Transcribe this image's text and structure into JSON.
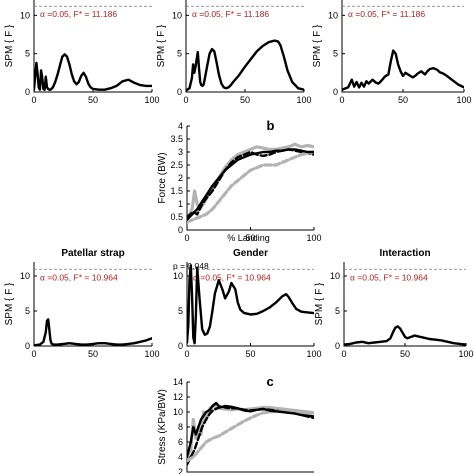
{
  "chart_data": [
    {
      "id": "spm_top_1",
      "type": "line",
      "title": "",
      "ylabel": "SPM { F }",
      "xlim": [
        0,
        100
      ],
      "ylim": [
        0,
        12
      ],
      "xticks": [
        "0",
        "50",
        "100"
      ],
      "yticks": [
        "0",
        "5",
        "10"
      ],
      "threshold": {
        "value": 11.186,
        "label": "α =0.05,     F* = 11.186"
      },
      "series": [
        {
          "x": [
            0,
            2,
            3,
            4,
            5,
            6,
            7,
            8,
            9,
            10,
            11,
            12,
            13,
            14,
            16,
            18,
            20,
            22,
            24,
            26,
            28,
            30,
            32,
            34,
            36,
            38,
            40,
            42,
            44,
            46,
            48,
            50,
            55,
            60,
            65,
            70,
            75,
            80,
            85,
            90,
            95,
            100
          ],
          "y": [
            0.3,
            3.8,
            2.5,
            0.6,
            0.3,
            2.8,
            1.8,
            0.4,
            0.3,
            2.0,
            0.6,
            0.4,
            0.3,
            0.3,
            0.6,
            1.3,
            2.3,
            3.5,
            4.6,
            4.9,
            4.6,
            3.6,
            2.3,
            1.4,
            1.0,
            1.3,
            2.1,
            2.5,
            2.0,
            1.1,
            0.6,
            0.4,
            0.3,
            0.3,
            0.5,
            0.8,
            1.4,
            1.6,
            1.2,
            0.9,
            0.8,
            0.8
          ]
        }
      ]
    },
    {
      "id": "spm_top_2",
      "type": "line",
      "title": "",
      "ylabel": "SPM { F }",
      "xlim": [
        0,
        100
      ],
      "ylim": [
        0,
        12
      ],
      "xticks": [
        "0",
        "50",
        "100"
      ],
      "yticks": [
        "0",
        "5",
        "10"
      ],
      "threshold": {
        "value": 11.186,
        "label": "α =0.05,     F* = 11.186"
      },
      "series": [
        {
          "x": [
            0,
            3,
            5,
            6,
            7,
            8,
            9,
            10,
            11,
            12,
            13,
            14,
            15,
            16,
            18,
            20,
            22,
            24,
            26,
            28,
            30,
            32,
            34,
            36,
            38,
            40,
            45,
            50,
            55,
            60,
            65,
            70,
            75,
            78,
            80,
            83,
            86,
            90,
            95,
            100
          ],
          "y": [
            0.2,
            0.5,
            1.8,
            3.6,
            2.5,
            3.2,
            4.2,
            5.2,
            3.1,
            1.3,
            0.9,
            0.8,
            1.0,
            1.8,
            3.4,
            5.0,
            5.6,
            5.3,
            3.8,
            2.2,
            1.1,
            0.6,
            0.5,
            0.6,
            0.9,
            1.3,
            2.2,
            3.3,
            4.3,
            5.3,
            6.0,
            6.5,
            6.7,
            6.6,
            6.1,
            4.6,
            2.8,
            1.3,
            0.5,
            0.3
          ]
        }
      ]
    },
    {
      "id": "spm_top_3",
      "type": "line",
      "title": "",
      "ylabel": "SPM { F }",
      "xlim": [
        0,
        100
      ],
      "ylim": [
        0,
        12
      ],
      "xticks": [
        "0",
        "50",
        "100"
      ],
      "yticks": [
        "0",
        "5",
        "10"
      ],
      "threshold": {
        "value": 11.186,
        "label": "α =0.05,     F* = 11.186"
      },
      "series": [
        {
          "x": [
            0,
            5,
            8,
            10,
            12,
            14,
            16,
            18,
            20,
            22,
            25,
            28,
            30,
            33,
            35,
            38,
            40,
            42,
            44,
            46,
            48,
            50,
            52,
            55,
            58,
            60,
            62,
            65,
            68,
            70,
            72,
            75,
            78,
            80,
            83,
            86,
            90,
            95,
            100
          ],
          "y": [
            0.3,
            0.6,
            1.6,
            0.7,
            1.3,
            0.6,
            1.2,
            0.7,
            1.4,
            1.1,
            1.6,
            1.2,
            1.1,
            1.6,
            2.0,
            2.3,
            4.0,
            5.4,
            5.0,
            3.6,
            2.7,
            2.1,
            2.5,
            2.2,
            1.9,
            2.1,
            2.4,
            2.7,
            2.3,
            2.7,
            3.0,
            3.1,
            2.9,
            2.6,
            2.4,
            2.1,
            1.6,
            1.0,
            0.6
          ]
        }
      ]
    },
    {
      "id": "force_b",
      "type": "line",
      "letter": "b",
      "ylabel": "Force (BW)",
      "xlabel": "% Landing",
      "xlim": [
        0,
        100
      ],
      "ylim": [
        0,
        4
      ],
      "xticks": [
        "0",
        "50",
        "100"
      ],
      "yticks": [
        "0",
        "0.5",
        "1",
        "1.5",
        "2",
        "2.5",
        "3",
        "3.5",
        "4"
      ],
      "series": [
        {
          "style": "gray-solid",
          "x": [
            0,
            4,
            6,
            8,
            10,
            13,
            16,
            20,
            25,
            30,
            35,
            40,
            45,
            50,
            55,
            60,
            65,
            70,
            75,
            80,
            85,
            90,
            95,
            100
          ],
          "y": [
            0.4,
            0.8,
            1.5,
            1.0,
            0.8,
            1.0,
            1.3,
            1.6,
            2.0,
            2.4,
            2.7,
            2.9,
            3.0,
            3.1,
            3.2,
            3.15,
            3.1,
            3.1,
            3.15,
            3.2,
            3.3,
            3.2,
            3.25,
            3.2
          ]
        },
        {
          "style": "black-dash",
          "x": [
            0,
            5,
            8,
            10,
            12,
            15,
            20,
            25,
            30,
            35,
            40,
            45,
            50,
            55,
            60,
            65,
            70,
            75,
            80,
            85,
            90,
            95,
            100
          ],
          "y": [
            0.5,
            0.7,
            0.6,
            0.8,
            1.0,
            1.2,
            1.5,
            1.9,
            2.3,
            2.6,
            2.8,
            2.9,
            3.0,
            2.9,
            2.85,
            2.9,
            3.0,
            3.05,
            3.1,
            3.05,
            3.0,
            2.95,
            2.9
          ]
        },
        {
          "style": "gray-dash",
          "x": [
            0,
            5,
            10,
            15,
            20,
            25,
            30,
            35,
            40,
            45,
            50,
            55,
            60,
            65,
            70,
            75,
            80,
            85,
            90,
            95,
            100
          ],
          "y": [
            0.3,
            0.4,
            0.5,
            0.6,
            0.8,
            1.1,
            1.4,
            1.7,
            1.9,
            2.1,
            2.3,
            2.4,
            2.5,
            2.5,
            2.5,
            2.6,
            2.7,
            2.8,
            2.9,
            2.95,
            3.0
          ]
        },
        {
          "style": "black-solid",
          "x": [
            0,
            4,
            8,
            12,
            16,
            20,
            25,
            30,
            35,
            40,
            45,
            50,
            55,
            60,
            65,
            70,
            75,
            80,
            85,
            90,
            95,
            100
          ],
          "y": [
            0.4,
            0.6,
            0.8,
            1.1,
            1.4,
            1.7,
            2.0,
            2.3,
            2.5,
            2.7,
            2.8,
            2.9,
            2.95,
            3.0,
            3.0,
            3.05,
            3.05,
            3.1,
            3.1,
            3.05,
            3.0,
            3.0
          ]
        }
      ]
    },
    {
      "id": "spm_bottom_patellar",
      "type": "line",
      "title": "Patellar strap",
      "ylabel": "SPM { F }",
      "xlim": [
        0,
        100
      ],
      "ylim": [
        0,
        12
      ],
      "xticks": [
        "0",
        "50",
        "100"
      ],
      "yticks": [
        "0",
        "5",
        "10"
      ],
      "threshold": {
        "value": 10.964,
        "label": "α =0.05,     F* = 10.964"
      },
      "series": [
        {
          "x": [
            0,
            5,
            8,
            10,
            11,
            12,
            13,
            14,
            15,
            17,
            20,
            25,
            30,
            35,
            40,
            45,
            50,
            55,
            60,
            65,
            70,
            75,
            80,
            85,
            90,
            95,
            100
          ],
          "y": [
            0.1,
            0.2,
            0.6,
            2.0,
            3.6,
            3.8,
            2.4,
            0.8,
            0.3,
            0.2,
            0.2,
            0.3,
            0.4,
            0.3,
            0.2,
            0.2,
            0.3,
            0.4,
            0.4,
            0.3,
            0.2,
            0.2,
            0.3,
            0.4,
            0.6,
            0.8,
            1.1
          ]
        }
      ]
    },
    {
      "id": "spm_bottom_gender",
      "type": "line",
      "title": "Gender",
      "ylabel": "",
      "xlim": [
        0,
        100
      ],
      "ylim": [
        0,
        12
      ],
      "xticks": [
        "0",
        "50",
        "100"
      ],
      "yticks": [
        "0",
        "5",
        "10"
      ],
      "threshold": {
        "value": 10.964,
        "label": "α =0.05,     F* = 10.964"
      },
      "pvalue": "p = 0.048",
      "series": [
        {
          "x": [
            0,
            1,
            2,
            3,
            4,
            5,
            6,
            7,
            8,
            10,
            12,
            14,
            16,
            18,
            20,
            22,
            25,
            28,
            30,
            33,
            35,
            38,
            40,
            42,
            45,
            48,
            50,
            55,
            60,
            65,
            70,
            75,
            78,
            80,
            83,
            86,
            90,
            95,
            100
          ],
          "y": [
            0.5,
            3.0,
            9.5,
            11.5,
            7.0,
            1.2,
            0.4,
            4.5,
            11.2,
            6.5,
            2.4,
            1.6,
            1.8,
            2.8,
            5.0,
            7.5,
            9.4,
            8.0,
            6.8,
            7.8,
            9.0,
            8.1,
            6.2,
            5.2,
            4.7,
            4.6,
            4.5,
            4.6,
            5.0,
            5.5,
            6.2,
            7.1,
            7.4,
            7.0,
            6.1,
            5.3,
            4.9,
            4.8,
            4.7
          ]
        }
      ]
    },
    {
      "id": "spm_bottom_interaction",
      "type": "line",
      "title": "Interaction",
      "ylabel": "SPM { F }",
      "xlim": [
        0,
        100
      ],
      "ylim": [
        0,
        12
      ],
      "xticks": [
        "0",
        "50",
        "100"
      ],
      "yticks": [
        "0",
        "5",
        "10"
      ],
      "threshold": {
        "value": 10.964,
        "label": "α =0.05,     F* = 10.964"
      },
      "series": [
        {
          "x": [
            0,
            5,
            10,
            15,
            20,
            25,
            30,
            35,
            38,
            40,
            42,
            44,
            46,
            48,
            50,
            52,
            55,
            58,
            60,
            65,
            70,
            75,
            80,
            85,
            90,
            95,
            100
          ],
          "y": [
            0.2,
            0.3,
            0.5,
            0.6,
            0.4,
            0.5,
            0.6,
            0.7,
            1.1,
            1.9,
            2.6,
            2.8,
            2.5,
            1.9,
            1.3,
            1.1,
            1.3,
            1.5,
            1.4,
            1.2,
            1.0,
            0.9,
            0.8,
            0.6,
            0.4,
            0.3,
            0.2
          ]
        }
      ]
    },
    {
      "id": "stress_c",
      "type": "line",
      "letter": "c",
      "ylabel": "Stress (KPa/BW)",
      "xlim": [
        0,
        100
      ],
      "ylim": [
        2,
        14
      ],
      "xticks": [],
      "yticks": [
        "2",
        "4",
        "6",
        "8",
        "10",
        "12",
        "14"
      ],
      "series": [
        {
          "style": "gray-solid",
          "x": [
            0,
            3,
            5,
            7,
            9,
            11,
            13,
            15,
            18,
            22,
            26,
            30,
            35,
            40,
            45,
            50,
            55,
            60,
            65,
            70,
            75,
            80,
            85,
            90,
            95,
            100
          ],
          "y": [
            4,
            5,
            9,
            6.5,
            8,
            7,
            10,
            9,
            10.5,
            10.8,
            10.5,
            10.4,
            10.3,
            10.4,
            10.3,
            10.4,
            10.5,
            10.6,
            10.6,
            10.5,
            10.4,
            10.3,
            10.2,
            10.1,
            10.0,
            9.9
          ]
        },
        {
          "style": "black-dash",
          "x": [
            0,
            3,
            6,
            9,
            12,
            15,
            18,
            21,
            24,
            27,
            30,
            35,
            40,
            45,
            50,
            55,
            60,
            65,
            70,
            75,
            80,
            85,
            90,
            95,
            100
          ],
          "y": [
            3,
            4,
            5,
            6.5,
            8,
            9,
            9.8,
            10.3,
            10.5,
            10.8,
            10.6,
            10.5,
            10.5,
            10.3,
            10.2,
            10.3,
            10.4,
            10.3,
            10.2,
            10.1,
            10.0,
            9.8,
            9.6,
            9.4,
            9.2
          ]
        },
        {
          "style": "gray-dash",
          "x": [
            0,
            5,
            10,
            15,
            20,
            25,
            30,
            35,
            40,
            45,
            50,
            55,
            60,
            65,
            70,
            75,
            80,
            85,
            90,
            95,
            100
          ],
          "y": [
            3.5,
            4,
            5,
            6,
            6.5,
            6.8,
            7.3,
            7.8,
            8.3,
            8.8,
            9.2,
            9.6,
            9.9,
            10.0,
            10.1,
            10.2,
            10.1,
            10.0,
            9.9,
            9.6,
            9.4
          ]
        },
        {
          "style": "black-solid",
          "x": [
            0,
            3,
            5,
            7,
            9,
            11,
            13,
            15,
            18,
            20,
            23,
            26,
            30,
            35,
            40,
            45,
            50,
            55,
            60,
            65,
            70,
            75,
            80,
            85,
            90,
            95,
            100
          ],
          "y": [
            4,
            6,
            8,
            7,
            8,
            9,
            9.5,
            10,
            10.3,
            10.8,
            11.2,
            10.6,
            10.8,
            10.7,
            10.5,
            10.2,
            10.1,
            10.3,
            10.4,
            10.2,
            10.1,
            10.0,
            9.9,
            9.8,
            9.6,
            9.5,
            9.4
          ]
        }
      ]
    }
  ]
}
